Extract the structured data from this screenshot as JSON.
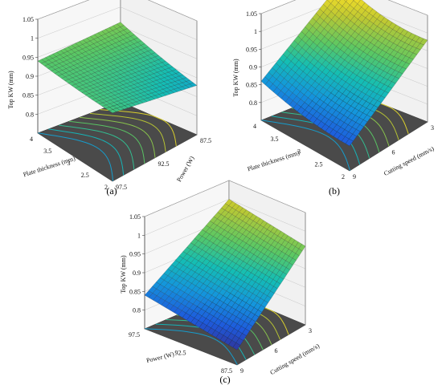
{
  "chart_data": [
    {
      "type": "surface",
      "panel_label": "(a)",
      "zlabel": "Top KW (mm)",
      "zticks": [
        "0.8",
        "0.85",
        "0.9",
        "0.95",
        "1",
        "1.05"
      ],
      "xlabel": "Plate thickness (mm)",
      "xticks": [
        "2",
        "2.5",
        "3",
        "3.5",
        "4"
      ],
      "ylabel": "Power (W)",
      "yticks": [
        "97.5",
        "92.5",
        "87.5"
      ],
      "x_range": [
        2,
        4
      ],
      "y_range": [
        87.5,
        97.5
      ],
      "zlim": [
        0.75,
        1.05
      ],
      "surface_corners": {
        "thickness_4_power_97.5": 0.94,
        "thickness_4_power_87.5": 0.96,
        "thickness_2_power_87.5": 0.88,
        "thickness_2_power_97.5": 0.93,
        "min_value": 0.875
      },
      "contour_floor": true
    },
    {
      "type": "surface",
      "panel_label": "(b)",
      "zlabel": "Top KW (mm)",
      "zticks": [
        "0.8",
        "0.85",
        "0.9",
        "0.95",
        "1",
        "1.05"
      ],
      "xlabel": "Plate thickness (mm)",
      "xticks": [
        "2",
        "2.5",
        "3",
        "3.5",
        "4"
      ],
      "ylabel": "Cutting speed (mm/s)",
      "yticks": [
        "9",
        "6",
        "3"
      ],
      "x_range": [
        2,
        4
      ],
      "y_range": [
        3,
        9
      ],
      "zlim": [
        0.75,
        1.05
      ],
      "surface_corners": {
        "thickness_4_speed_9": 0.86,
        "thickness_4_speed_3": 1.05,
        "thickness_2_speed_3": 0.98,
        "thickness_2_speed_9": 0.82,
        "min_value": 0.8
      },
      "contour_floor": true
    },
    {
      "type": "surface",
      "panel_label": "(c)",
      "zlabel": "Top KW (mm)",
      "zticks": [
        "0.8",
        "0.85",
        "0.9",
        "0.95",
        "1",
        "1.05"
      ],
      "xlabel": "Power (W)",
      "xticks": [
        "87.5",
        "92.5",
        "97.5"
      ],
      "ylabel": "Cutting speed (mm/s)",
      "yticks": [
        "9",
        "6",
        "3"
      ],
      "x_range": [
        87.5,
        97.5
      ],
      "y_range": [
        3,
        9
      ],
      "zlim": [
        0.75,
        1.05
      ],
      "surface_corners": {
        "power_97.5_speed_9": 0.84,
        "power_97.5_speed_3": 1.0,
        "power_87.5_speed_3": 0.96,
        "power_87.5_speed_9": 0.79
      },
      "contour_floor": true
    }
  ]
}
